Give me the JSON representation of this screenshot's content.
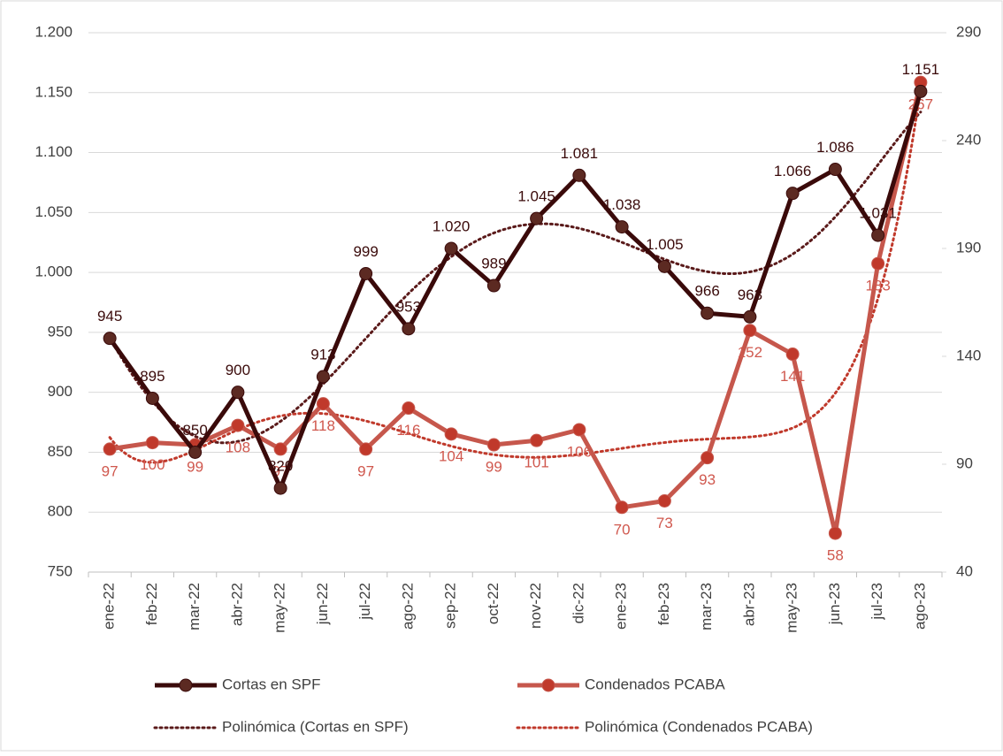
{
  "chart_data": {
    "type": "line",
    "categories": [
      "ene-22",
      "feb-22",
      "mar-22",
      "abr-22",
      "may-22",
      "jun-22",
      "jul-22",
      "ago-22",
      "sep-22",
      "oct-22",
      "nov-22",
      "dic-22",
      "ene-23",
      "feb-23",
      "mar-23",
      "abr-23",
      "may-23",
      "jun-23",
      "jul-23",
      "ago-23"
    ],
    "series": [
      {
        "name": "Cortas en SPF",
        "color": "#3a0a0a",
        "marker_color": "#5c2a22",
        "values": [
          945,
          895,
          850,
          900,
          820,
          913,
          999,
          953,
          1020,
          989,
          1045,
          1081,
          1038,
          1005,
          966,
          963,
          1066,
          1086,
          1031,
          1151
        ],
        "value_labels": [
          "945",
          "895",
          "850",
          "900",
          "820",
          "913",
          "999",
          "953",
          "1.020",
          "989",
          "1.045",
          "1.081",
          "1.038",
          "1.005",
          "966",
          "963",
          "1.066",
          "1.086",
          "1.031",
          "1.151"
        ]
      },
      {
        "name": "Condenados PCABA",
        "color": "#c6574c",
        "marker_color": "#c0392b",
        "axis": "y2",
        "values": [
          97,
          100,
          99,
          108,
          97,
          118,
          97,
          116,
          104,
          99,
          101,
          106,
          70,
          73,
          93,
          152,
          141,
          58,
          183,
          267
        ]
      }
    ],
    "trendlines": [
      {
        "name": "Polinómica (Cortas en SPF)",
        "color": "#5a1a1a",
        "series": 0
      },
      {
        "name": "Polinómica (Condenados PCABA)",
        "color": "#c0392b",
        "series": 1
      }
    ],
    "trend_degree": 6,
    "ylim": [
      750,
      1200
    ],
    "yticks": [
      750,
      800,
      850,
      900,
      950,
      {
        "value": 1000,
        "label": "1.000"
      },
      {
        "value": 1050,
        "label": "1.050"
      },
      {
        "value": 1100,
        "label": "1.100"
      },
      {
        "value": 1150,
        "label": "1.150"
      },
      {
        "value": 1200,
        "label": "1.200"
      }
    ],
    "y2lim": [
      40,
      290
    ],
    "y2ticks": [
      40,
      90,
      140,
      190,
      240,
      290
    ],
    "grid": true
  }
}
